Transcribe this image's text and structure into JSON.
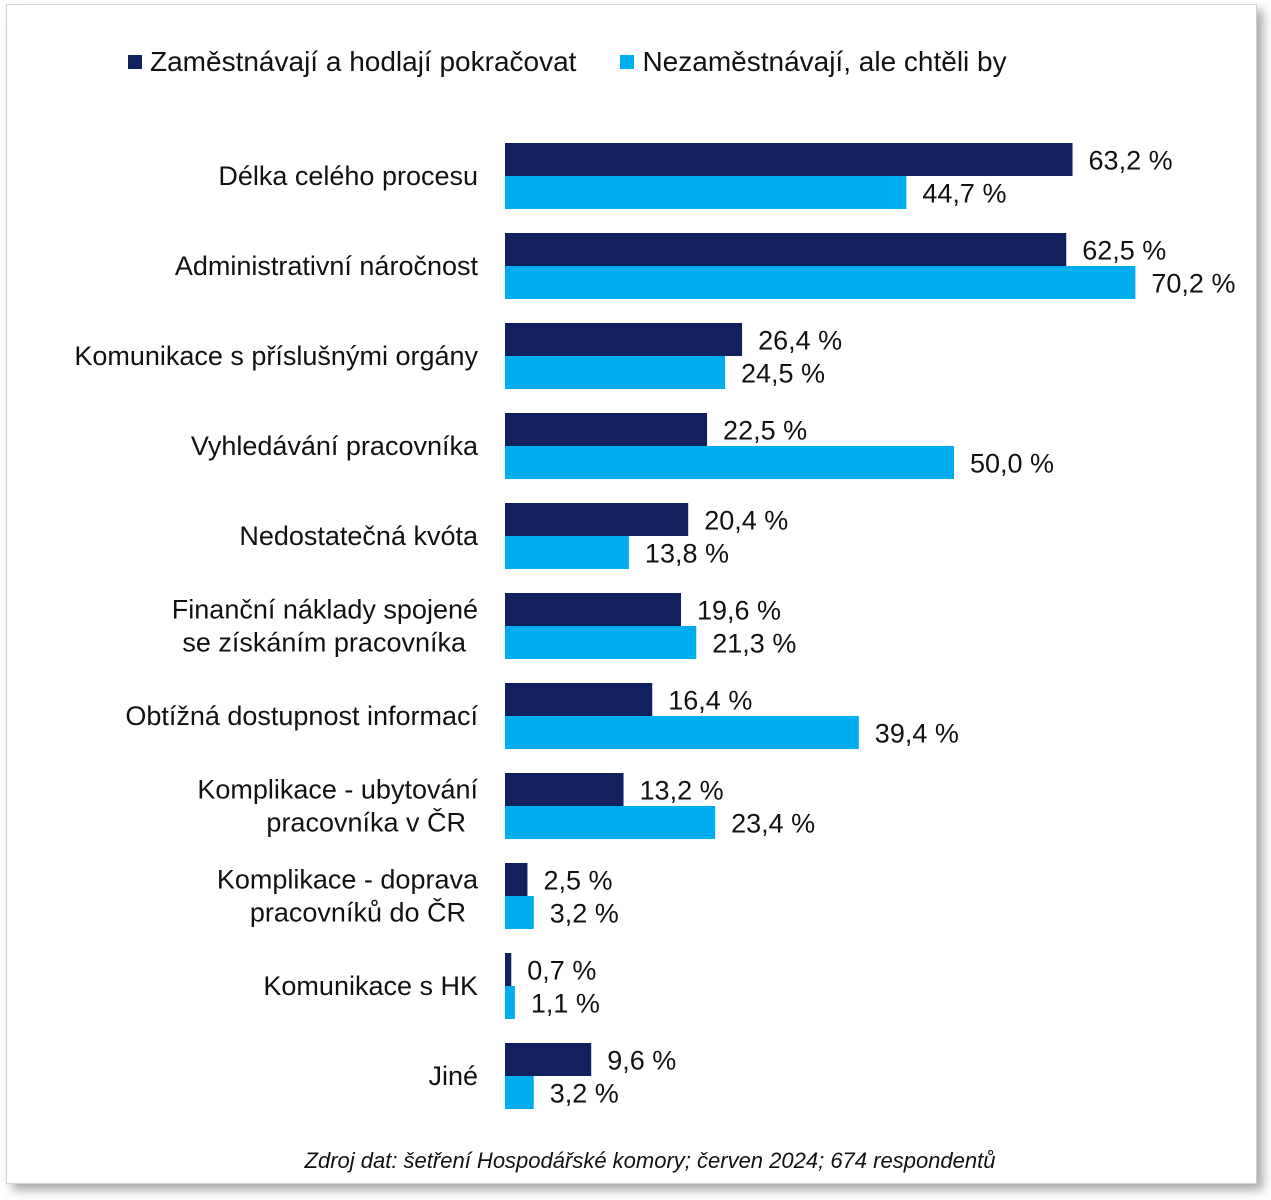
{
  "chart_data": {
    "type": "bar",
    "orientation": "horizontal",
    "categories": [
      [
        "Délka celého procesu"
      ],
      [
        "Administrativní náročnost"
      ],
      [
        "Komunikace s příslušnými orgány"
      ],
      [
        "Vyhledávání pracovníka"
      ],
      [
        "Nedostatečná kvóta"
      ],
      [
        "Finanční náklady spojené",
        "se získáním pracovníka"
      ],
      [
        "Obtížná dostupnost informací"
      ],
      [
        "Komplikace - ubytování",
        "pracovníka v ČR"
      ],
      [
        "Komplikace - doprava",
        "pracovníků do ČR"
      ],
      [
        "Komunikace s HK"
      ],
      [
        "Jiné"
      ]
    ],
    "series": [
      {
        "name": "Zaměstnávají a hodlají pokračovat",
        "color": "#10215e",
        "values": [
          63.2,
          62.5,
          26.4,
          22.5,
          20.4,
          19.6,
          16.4,
          13.2,
          2.5,
          0.7,
          9.6
        ],
        "labels": [
          "63,2 %",
          "62,5 %",
          "26,4 %",
          "22,5 %",
          "20,4 %",
          "19,6 %",
          "16,4 %",
          "13,2 %",
          "2,5 %",
          "0,7 %",
          "9,6 %"
        ]
      },
      {
        "name": "Nezaměstnávají, ale chtěli by",
        "color": "#00adef",
        "values": [
          44.7,
          70.2,
          24.5,
          50.0,
          13.8,
          21.3,
          39.4,
          23.4,
          3.2,
          1.1,
          3.2
        ],
        "labels": [
          "44,7 %",
          "70,2 %",
          "24,5 %",
          "50,0 %",
          "13,8 %",
          "21,3 %",
          "39,4 %",
          "23,4 %",
          "3,2 %",
          "1,1 %",
          "3,2 %"
        ]
      }
    ],
    "legend_position": "top",
    "grid": false,
    "source": "Zdroj dat: šetření Hospodářské komory; červen 2024; 674 respondentů"
  }
}
